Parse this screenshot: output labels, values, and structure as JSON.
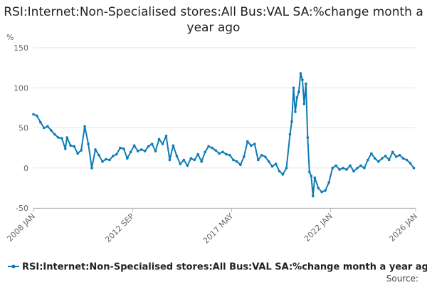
{
  "chart_data": {
    "type": "line",
    "title": "RSI:Internet:Non-Specialised stores:All Bus:VAL SA:%change month a year ago",
    "ylabel": "%",
    "xlabel": "",
    "ylim": [
      -50,
      150
    ],
    "xlim": [
      "2008-01",
      "2026-01"
    ],
    "yticks": [
      -50,
      0,
      50,
      100,
      150
    ],
    "xticks": [
      {
        "date": "2008-01",
        "label": "2008 JAN"
      },
      {
        "date": "2012-09",
        "label": "2012 SEP"
      },
      {
        "date": "2017-05",
        "label": "2017 MAY"
      },
      {
        "date": "2022-01",
        "label": "2022 JAN"
      },
      {
        "date": "2026-01",
        "label": "2026 JAN"
      }
    ],
    "grid": true,
    "legend": "bottom",
    "color": "#0e7bb5",
    "source_label": "Source:",
    "series": [
      {
        "name": "RSI:Internet:Non-Specialised stores:All Bus:VAL SA:%change month a year ago",
        "points": [
          [
            "2008-01",
            67
          ],
          [
            "2008-03",
            65
          ],
          [
            "2008-05",
            57
          ],
          [
            "2008-07",
            50
          ],
          [
            "2008-09",
            52
          ],
          [
            "2008-11",
            47
          ],
          [
            "2009-01",
            42
          ],
          [
            "2009-03",
            38
          ],
          [
            "2009-05",
            37
          ],
          [
            "2009-07",
            24
          ],
          [
            "2009-08",
            38
          ],
          [
            "2009-10",
            28
          ],
          [
            "2009-12",
            27
          ],
          [
            "2010-02",
            18
          ],
          [
            "2010-04",
            22
          ],
          [
            "2010-06",
            52
          ],
          [
            "2010-08",
            30
          ],
          [
            "2010-10",
            0
          ],
          [
            "2010-12",
            23
          ],
          [
            "2011-02",
            16
          ],
          [
            "2011-04",
            8
          ],
          [
            "2011-06",
            11
          ],
          [
            "2011-08",
            10
          ],
          [
            "2011-10",
            15
          ],
          [
            "2011-12",
            17
          ],
          [
            "2012-02",
            25
          ],
          [
            "2012-04",
            24
          ],
          [
            "2012-06",
            12
          ],
          [
            "2012-08",
            20
          ],
          [
            "2012-10",
            28
          ],
          [
            "2012-12",
            21
          ],
          [
            "2013-02",
            23
          ],
          [
            "2013-04",
            21
          ],
          [
            "2013-06",
            27
          ],
          [
            "2013-08",
            30
          ],
          [
            "2013-10",
            21
          ],
          [
            "2013-12",
            36
          ],
          [
            "2014-02",
            30
          ],
          [
            "2014-04",
            40
          ],
          [
            "2014-06",
            10
          ],
          [
            "2014-08",
            28
          ],
          [
            "2014-10",
            15
          ],
          [
            "2014-12",
            5
          ],
          [
            "2015-02",
            10
          ],
          [
            "2015-04",
            3
          ],
          [
            "2015-06",
            12
          ],
          [
            "2015-08",
            10
          ],
          [
            "2015-10",
            17
          ],
          [
            "2015-12",
            8
          ],
          [
            "2016-02",
            20
          ],
          [
            "2016-04",
            27
          ],
          [
            "2016-06",
            25
          ],
          [
            "2016-08",
            22
          ],
          [
            "2016-10",
            18
          ],
          [
            "2016-12",
            20
          ],
          [
            "2017-02",
            17
          ],
          [
            "2017-04",
            16
          ],
          [
            "2017-06",
            10
          ],
          [
            "2017-08",
            8
          ],
          [
            "2017-10",
            4
          ],
          [
            "2017-12",
            14
          ],
          [
            "2018-02",
            33
          ],
          [
            "2018-04",
            28
          ],
          [
            "2018-06",
            30
          ],
          [
            "2018-08",
            10
          ],
          [
            "2018-10",
            16
          ],
          [
            "2018-12",
            14
          ],
          [
            "2019-02",
            8
          ],
          [
            "2019-04",
            2
          ],
          [
            "2019-06",
            5
          ],
          [
            "2019-08",
            -4
          ],
          [
            "2019-10",
            -8
          ],
          [
            "2019-12",
            0
          ],
          [
            "2020-02",
            42
          ],
          [
            "2020-03",
            58
          ],
          [
            "2020-04",
            100
          ],
          [
            "2020-05",
            70
          ],
          [
            "2020-06",
            88
          ],
          [
            "2020-07",
            95
          ],
          [
            "2020-08",
            118
          ],
          [
            "2020-09",
            110
          ],
          [
            "2020-10",
            80
          ],
          [
            "2020-11",
            105
          ],
          [
            "2020-12",
            38
          ],
          [
            "2021-01",
            -5
          ],
          [
            "2021-02",
            -10
          ],
          [
            "2021-03",
            -35
          ],
          [
            "2021-04",
            -12
          ],
          [
            "2021-06",
            -25
          ],
          [
            "2021-08",
            -30
          ],
          [
            "2021-10",
            -28
          ],
          [
            "2021-12",
            -18
          ],
          [
            "2022-02",
            0
          ],
          [
            "2022-04",
            3
          ],
          [
            "2022-06",
            -2
          ],
          [
            "2022-08",
            0
          ],
          [
            "2022-10",
            -2
          ],
          [
            "2022-12",
            3
          ],
          [
            "2023-02",
            -4
          ],
          [
            "2023-04",
            0
          ],
          [
            "2023-06",
            3
          ],
          [
            "2023-08",
            0
          ],
          [
            "2023-10",
            10
          ],
          [
            "2023-12",
            18
          ],
          [
            "2024-02",
            12
          ],
          [
            "2024-04",
            8
          ],
          [
            "2024-06",
            12
          ],
          [
            "2024-08",
            15
          ],
          [
            "2024-10",
            10
          ],
          [
            "2024-12",
            20
          ],
          [
            "2025-02",
            14
          ],
          [
            "2025-04",
            16
          ],
          [
            "2025-06",
            12
          ],
          [
            "2025-08",
            10
          ],
          [
            "2025-10",
            6
          ],
          [
            "2025-12",
            0
          ]
        ]
      }
    ]
  }
}
